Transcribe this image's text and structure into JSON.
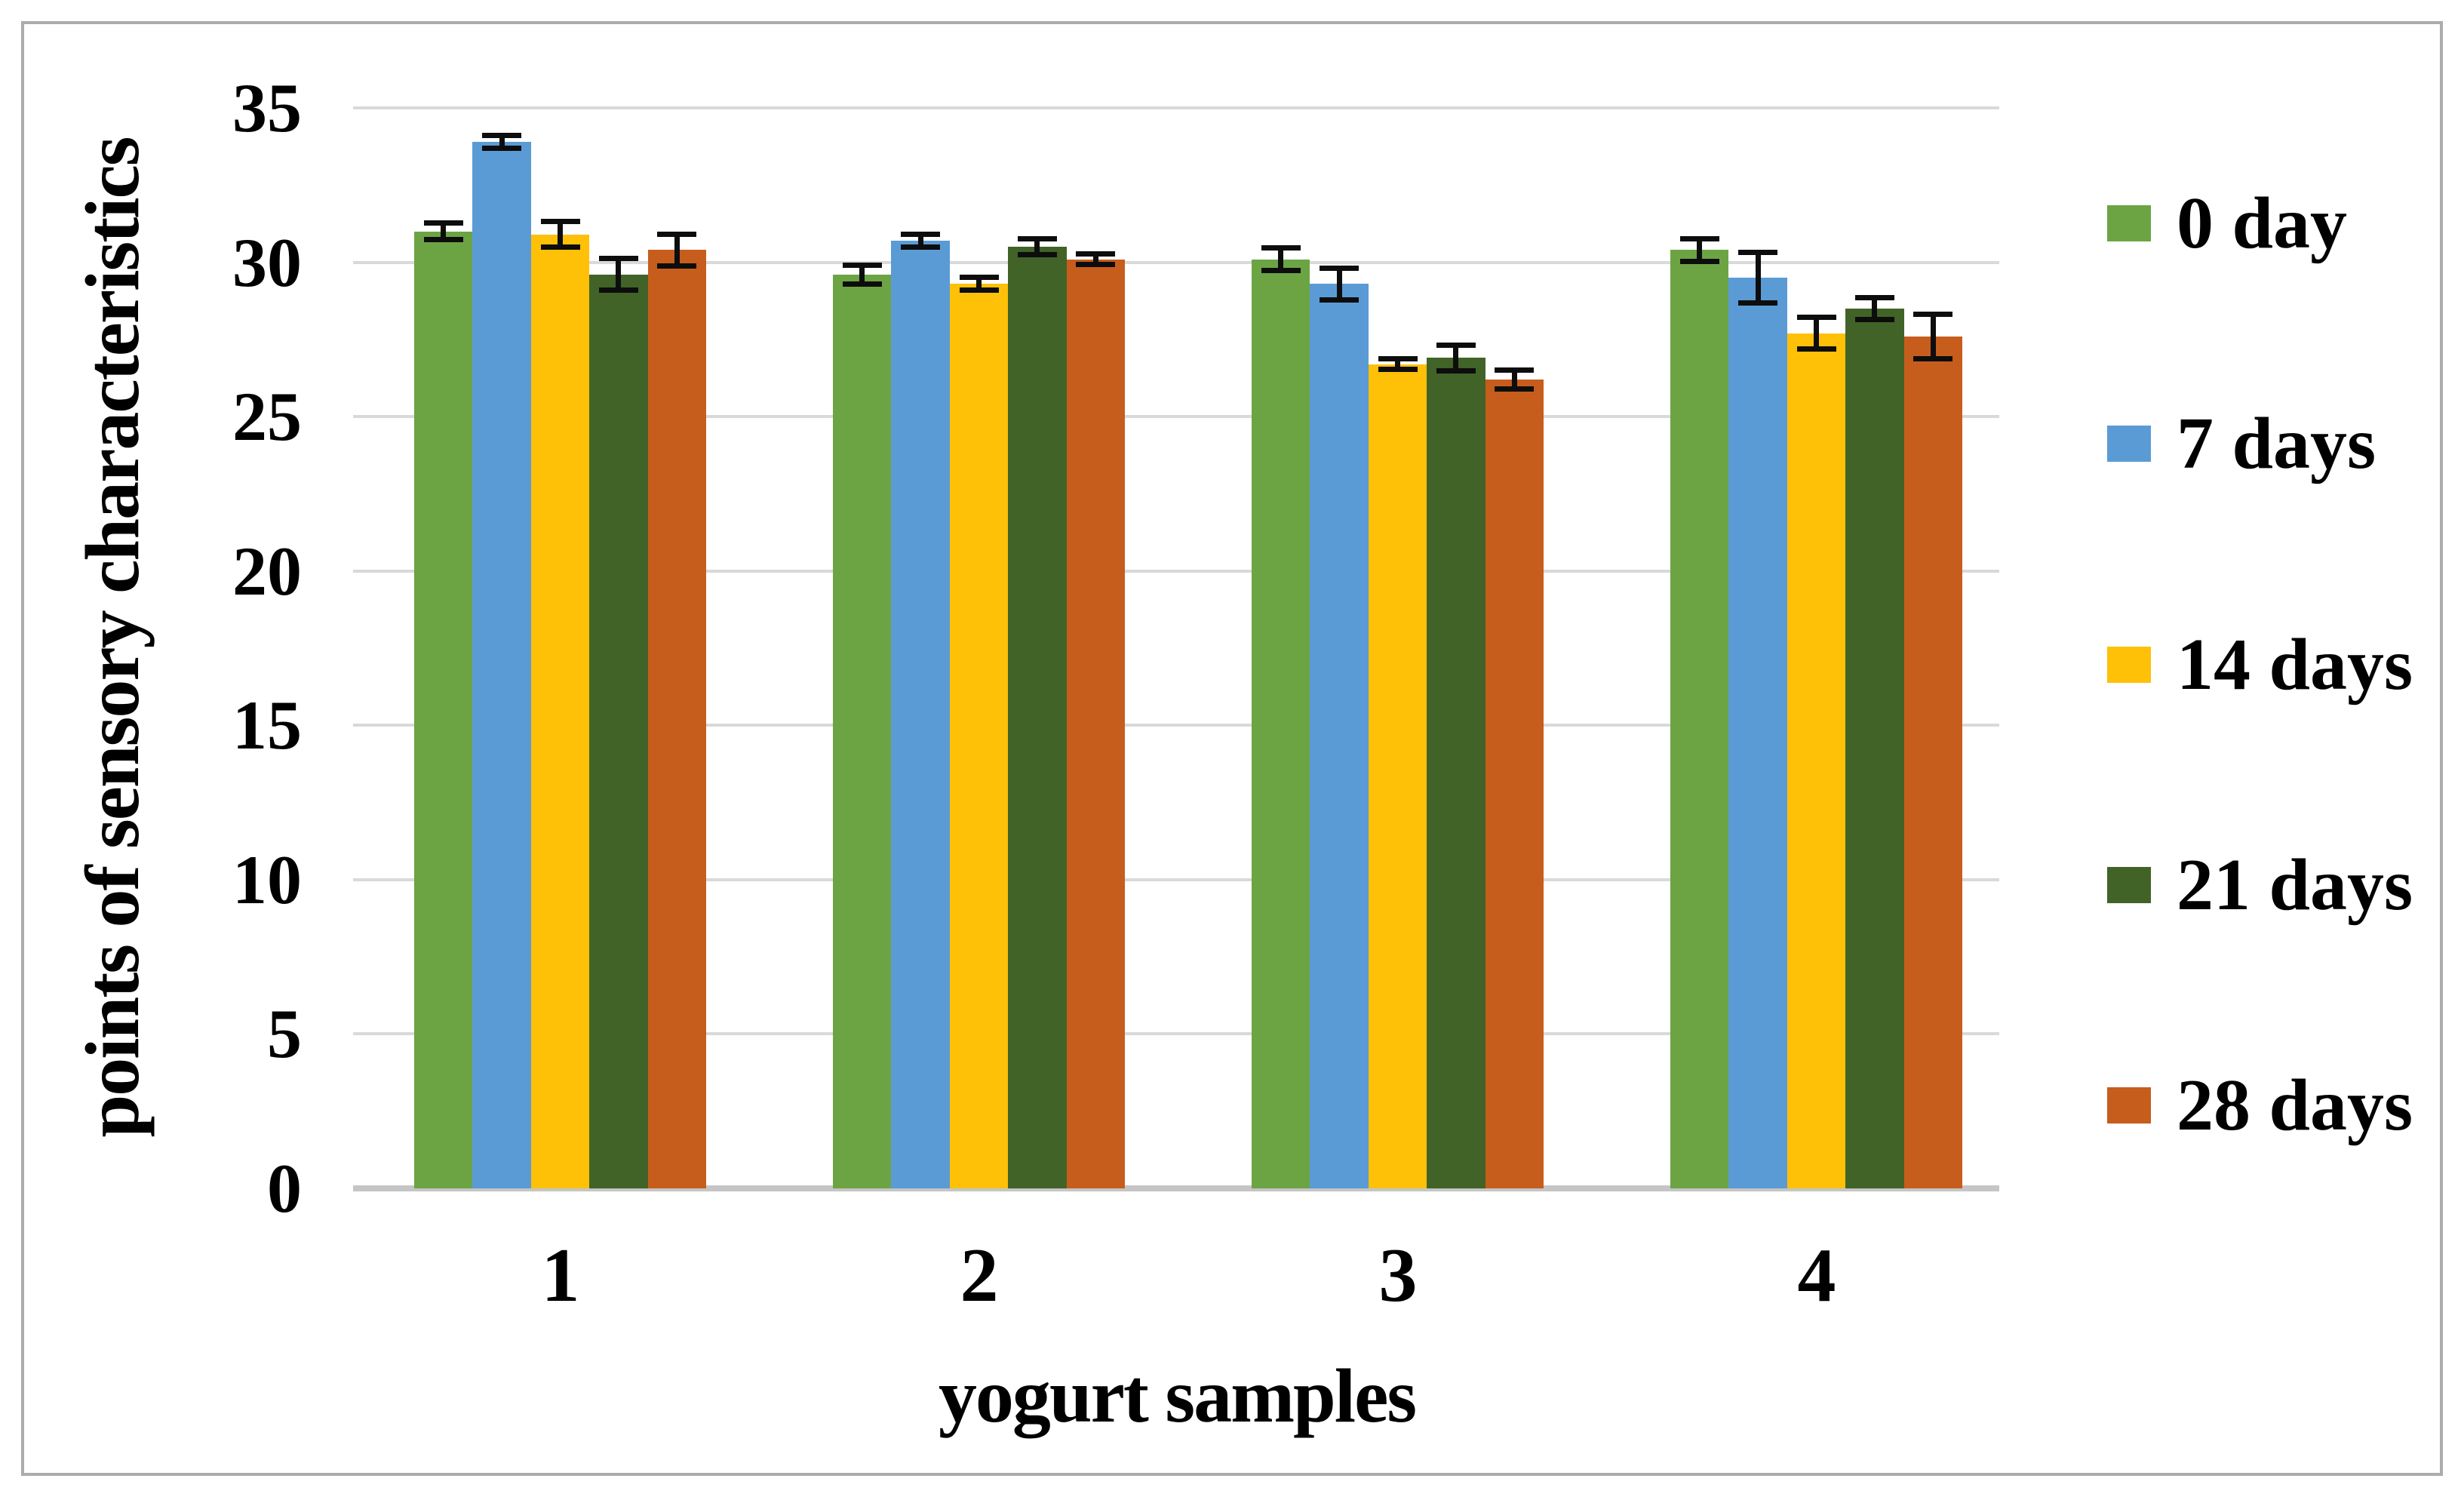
{
  "figure": {
    "background": "#ffffff",
    "border_color": "#acacac",
    "gridline_color": "#d9d9d9",
    "baseline_color": "#c5c5c5",
    "errorbar_color": "#0d0d0d"
  },
  "chart_data": {
    "type": "bar",
    "title": "",
    "xlabel": "yogurt samples",
    "ylabel": "points of sensory characteristics",
    "categories": [
      "1",
      "2",
      "3",
      "4"
    ],
    "series": [
      {
        "name": "0 day",
        "color": "#6ca444",
        "values": [
          31.0,
          29.6,
          30.1,
          30.4
        ],
        "errors": [
          0.35,
          0.4,
          0.45,
          0.45
        ]
      },
      {
        "name": "7 days",
        "color": "#5b9bd5",
        "values": [
          33.9,
          30.7,
          29.3,
          29.5
        ],
        "errors": [
          0.3,
          0.3,
          0.6,
          0.9
        ]
      },
      {
        "name": "14 days",
        "color": "#ffc008",
        "values": [
          30.9,
          29.3,
          26.7,
          27.7
        ],
        "errors": [
          0.5,
          0.3,
          0.25,
          0.6
        ]
      },
      {
        "name": "21 days",
        "color": "#416327",
        "values": [
          29.6,
          30.5,
          26.9,
          28.5
        ],
        "errors": [
          0.6,
          0.35,
          0.5,
          0.45
        ]
      },
      {
        "name": "28 days",
        "color": "#c75d1d",
        "values": [
          30.4,
          30.1,
          26.2,
          27.6
        ],
        "errors": [
          0.6,
          0.25,
          0.4,
          0.8
        ]
      }
    ],
    "ylim": [
      0,
      35
    ],
    "yticks": [
      0,
      5,
      10,
      15,
      20,
      25,
      30,
      35
    ],
    "grid": true,
    "error_bars": true,
    "legend_position": "right"
  }
}
